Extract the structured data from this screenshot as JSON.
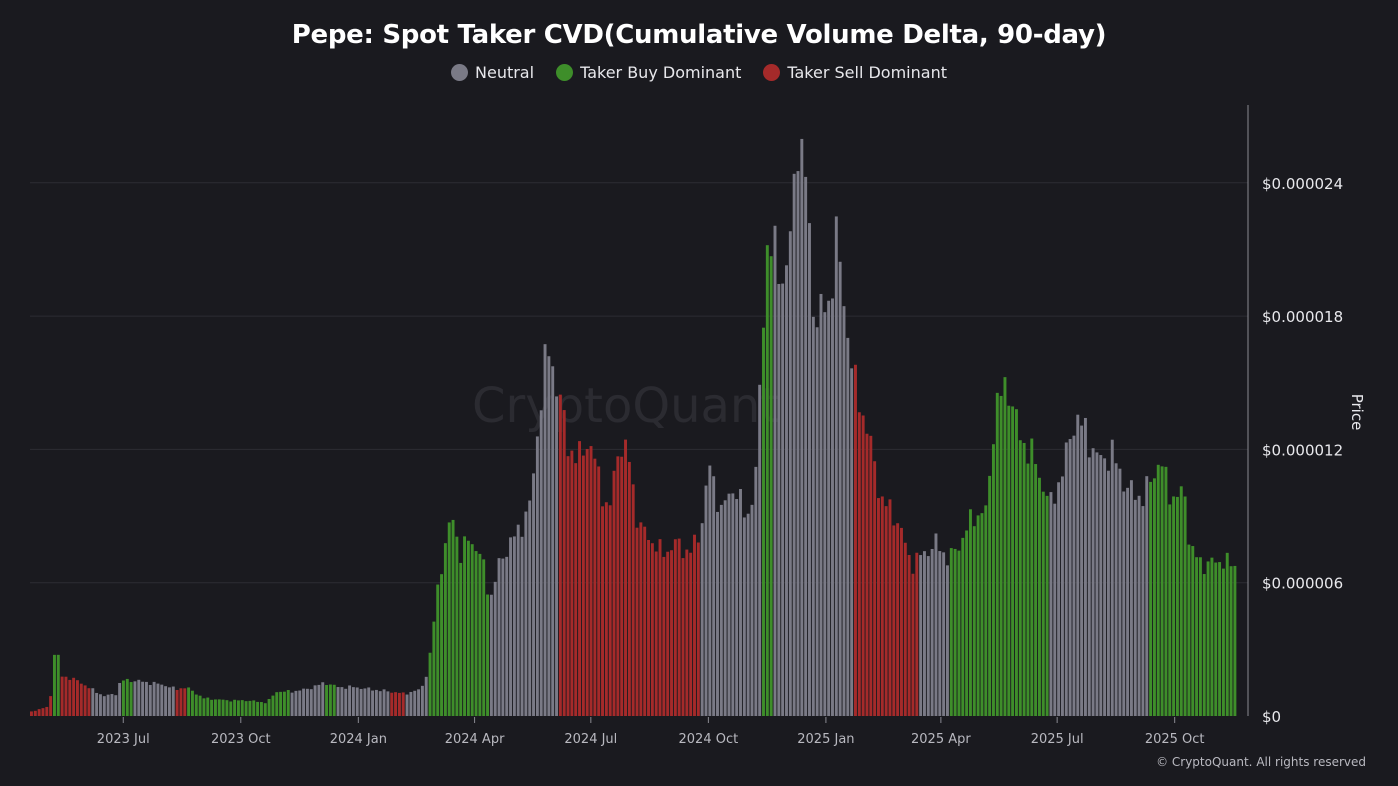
{
  "header": {
    "title": "Pepe: Spot Taker CVD(Cumulative Volume Delta, 90-day)"
  },
  "legend": [
    {
      "label": "Neutral",
      "color": "#7a7a86"
    },
    {
      "label": "Taker Buy Dominant",
      "color": "#3e8e2a"
    },
    {
      "label": "Taker Sell Dominant",
      "color": "#a52a2a"
    }
  ],
  "watermark": "CryptoQuant",
  "footer": {
    "credit": "© CryptoQuant. All rights reserved"
  },
  "chart_data": {
    "type": "bar",
    "ylabel": "Price",
    "ylim": [
      0,
      2.75e-05
    ],
    "yticks": [
      {
        "value": 0,
        "label": "$0"
      },
      {
        "value": 6e-06,
        "label": "$0.000006"
      },
      {
        "value": 1.2e-05,
        "label": "$0.000012"
      },
      {
        "value": 1.8e-05,
        "label": "$0.000018"
      },
      {
        "value": 2.4e-05,
        "label": "$0.000024"
      }
    ],
    "x_range": [
      "2023-04-19",
      "2025-11-18"
    ],
    "xticks": [
      {
        "date": "2023-07-01",
        "label": "2023 Jul"
      },
      {
        "date": "2023-10-01",
        "label": "2023 Oct"
      },
      {
        "date": "2024-01-01",
        "label": "2024 Jan"
      },
      {
        "date": "2024-04-01",
        "label": "2024 Apr"
      },
      {
        "date": "2024-07-01",
        "label": "2024 Jul"
      },
      {
        "date": "2024-10-01",
        "label": "2024 Oct"
      },
      {
        "date": "2025-01-01",
        "label": "2025 Jan"
      },
      {
        "date": "2025-04-01",
        "label": "2025 Apr"
      },
      {
        "date": "2025-07-01",
        "label": "2025 Jul"
      },
      {
        "date": "2025-10-01",
        "label": "2025 Oct"
      }
    ],
    "grid": true,
    "legend_position": "top",
    "series": [
      {
        "name": "Price",
        "interval_days": 3,
        "points": [
          [
            "2023-04-19",
            2e-07,
            "sell"
          ],
          [
            "2023-04-25",
            3e-07,
            "sell"
          ],
          [
            "2023-05-01",
            4e-07,
            "sell"
          ],
          [
            "2023-05-05",
            1.1e-06,
            "buy"
          ],
          [
            "2023-05-08",
            3.7e-06,
            "buy"
          ],
          [
            "2023-05-10",
            2.6e-06,
            "buy"
          ],
          [
            "2023-05-13",
            1.8e-06,
            "sell"
          ],
          [
            "2023-05-20",
            1.7e-06,
            "sell"
          ],
          [
            "2023-05-28",
            1.5e-06,
            "sell"
          ],
          [
            "2023-06-05",
            1.2e-06,
            "neutral"
          ],
          [
            "2023-06-15",
            9e-07,
            "neutral"
          ],
          [
            "2023-06-24",
            1e-06,
            "neutral"
          ],
          [
            "2023-06-28",
            1.6e-06,
            "buy"
          ],
          [
            "2023-07-08",
            1.6e-06,
            "neutral"
          ],
          [
            "2023-07-20",
            1.5e-06,
            "neutral"
          ],
          [
            "2023-08-01",
            1.4e-06,
            "neutral"
          ],
          [
            "2023-08-10",
            1.2e-06,
            "sell"
          ],
          [
            "2023-08-18",
            1.3e-06,
            "buy"
          ],
          [
            "2023-09-01",
            8e-07,
            "buy"
          ],
          [
            "2023-09-20",
            7e-07,
            "buy"
          ],
          [
            "2023-10-05",
            7e-07,
            "buy"
          ],
          [
            "2023-10-20",
            6e-07,
            "buy"
          ],
          [
            "2023-10-28",
            1.1e-06,
            "buy"
          ],
          [
            "2023-11-08",
            1.1e-06,
            "neutral"
          ],
          [
            "2023-11-20",
            1.2e-06,
            "neutral"
          ],
          [
            "2023-12-05",
            1.5e-06,
            "buy"
          ],
          [
            "2023-12-15",
            1.3e-06,
            "neutral"
          ],
          [
            "2023-12-28",
            1.3e-06,
            "neutral"
          ],
          [
            "2024-01-10",
            1.2e-06,
            "neutral"
          ],
          [
            "2024-01-25",
            1.1e-06,
            "sell"
          ],
          [
            "2024-02-05",
            1e-06,
            "neutral"
          ],
          [
            "2024-02-18",
            1.2e-06,
            "neutral"
          ],
          [
            "2024-02-24",
            2.2e-06,
            "buy"
          ],
          [
            "2024-03-02",
            5.8e-06,
            "buy"
          ],
          [
            "2024-03-08",
            7.7e-06,
            "buy"
          ],
          [
            "2024-03-14",
            9e-06,
            "buy"
          ],
          [
            "2024-03-20",
            7.2e-06,
            "buy"
          ],
          [
            "2024-03-27",
            8.1e-06,
            "buy"
          ],
          [
            "2024-04-06",
            7e-06,
            "buy"
          ],
          [
            "2024-04-12",
            5.2e-06,
            "neutral"
          ],
          [
            "2024-04-20",
            7e-06,
            "neutral"
          ],
          [
            "2024-04-28",
            7.8e-06,
            "neutral"
          ],
          [
            "2024-05-06",
            8.5e-06,
            "neutral"
          ],
          [
            "2024-05-14",
            9.6e-06,
            "neutral"
          ],
          [
            "2024-05-21",
            1.4e-05,
            "neutral"
          ],
          [
            "2024-05-27",
            1.66e-05,
            "neutral"
          ],
          [
            "2024-06-01",
            1.55e-05,
            "neutral"
          ],
          [
            "2024-06-05",
            1.45e-05,
            "sell"
          ],
          [
            "2024-06-12",
            1.22e-05,
            "sell"
          ],
          [
            "2024-06-20",
            1.15e-05,
            "sell"
          ],
          [
            "2024-06-28",
            1.25e-05,
            "sell"
          ],
          [
            "2024-07-06",
            1.08e-05,
            "sell"
          ],
          [
            "2024-07-14",
            9e-06,
            "sell"
          ],
          [
            "2024-07-22",
            1.24e-05,
            "sell"
          ],
          [
            "2024-07-30",
            1.15e-05,
            "sell"
          ],
          [
            "2024-08-06",
            8.6e-06,
            "sell"
          ],
          [
            "2024-08-15",
            8e-06,
            "sell"
          ],
          [
            "2024-08-25",
            7.3e-06,
            "sell"
          ],
          [
            "2024-09-05",
            7.8e-06,
            "sell"
          ],
          [
            "2024-09-15",
            7.3e-06,
            "sell"
          ],
          [
            "2024-09-23",
            8.2e-06,
            "neutral"
          ],
          [
            "2024-10-01",
            1.12e-05,
            "neutral"
          ],
          [
            "2024-10-10",
            9.2e-06,
            "neutral"
          ],
          [
            "2024-10-20",
            1.04e-05,
            "neutral"
          ],
          [
            "2024-10-30",
            8.8e-06,
            "neutral"
          ],
          [
            "2024-11-06",
            1.08e-05,
            "neutral"
          ],
          [
            "2024-11-12",
            1.82e-05,
            "buy"
          ],
          [
            "2024-11-15",
            2.12e-05,
            "buy"
          ],
          [
            "2024-11-19",
            2.1e-05,
            "neutral"
          ],
          [
            "2024-11-27",
            1.98e-05,
            "neutral"
          ],
          [
            "2024-12-02",
            2.05e-05,
            "neutral"
          ],
          [
            "2024-12-09",
            2.63e-05,
            "neutral"
          ],
          [
            "2024-12-15",
            2.42e-05,
            "neutral"
          ],
          [
            "2024-12-22",
            1.78e-05,
            "neutral"
          ],
          [
            "2025-01-02",
            1.85e-05,
            "neutral"
          ],
          [
            "2025-01-08",
            2.15e-05,
            "neutral"
          ],
          [
            "2025-01-16",
            1.78e-05,
            "neutral"
          ],
          [
            "2025-01-22",
            1.5e-05,
            "sell"
          ],
          [
            "2025-02-01",
            1.3e-05,
            "sell"
          ],
          [
            "2025-02-12",
            9.8e-06,
            "sell"
          ],
          [
            "2025-02-25",
            8.8e-06,
            "sell"
          ],
          [
            "2025-03-08",
            6.8e-06,
            "sell"
          ],
          [
            "2025-03-15",
            7.2e-06,
            "neutral"
          ],
          [
            "2025-03-28",
            7.8e-06,
            "neutral"
          ],
          [
            "2025-04-06",
            7e-06,
            "buy"
          ],
          [
            "2025-04-15",
            7.8e-06,
            "buy"
          ],
          [
            "2025-04-25",
            9e-06,
            "buy"
          ],
          [
            "2025-05-06",
            9.2e-06,
            "buy"
          ],
          [
            "2025-05-12",
            1.38e-05,
            "buy"
          ],
          [
            "2025-05-22",
            1.5e-05,
            "buy"
          ],
          [
            "2025-06-01",
            1.25e-05,
            "buy"
          ],
          [
            "2025-06-10",
            1.18e-05,
            "buy"
          ],
          [
            "2025-06-20",
            1.02e-05,
            "buy"
          ],
          [
            "2025-06-25",
            9.5e-06,
            "neutral"
          ],
          [
            "2025-07-05",
            1.12e-05,
            "neutral"
          ],
          [
            "2025-07-14",
            1.35e-05,
            "neutral"
          ],
          [
            "2025-07-22",
            1.28e-05,
            "neutral"
          ],
          [
            "2025-08-01",
            1.15e-05,
            "neutral"
          ],
          [
            "2025-08-12",
            1.18e-05,
            "neutral"
          ],
          [
            "2025-08-24",
            1.02e-05,
            "neutral"
          ],
          [
            "2025-09-06",
            9.8e-06,
            "neutral"
          ],
          [
            "2025-09-10",
            1.05e-05,
            "buy"
          ],
          [
            "2025-09-18",
            1.15e-05,
            "buy"
          ],
          [
            "2025-09-28",
            9.8e-06,
            "buy"
          ],
          [
            "2025-10-08",
            1e-05,
            "buy"
          ],
          [
            "2025-10-12",
            7.5e-06,
            "buy"
          ],
          [
            "2025-10-22",
            6.8e-06,
            "buy"
          ],
          [
            "2025-11-05",
            7e-06,
            "buy"
          ],
          [
            "2025-11-14",
            6.8e-06,
            "buy"
          ]
        ]
      }
    ]
  }
}
